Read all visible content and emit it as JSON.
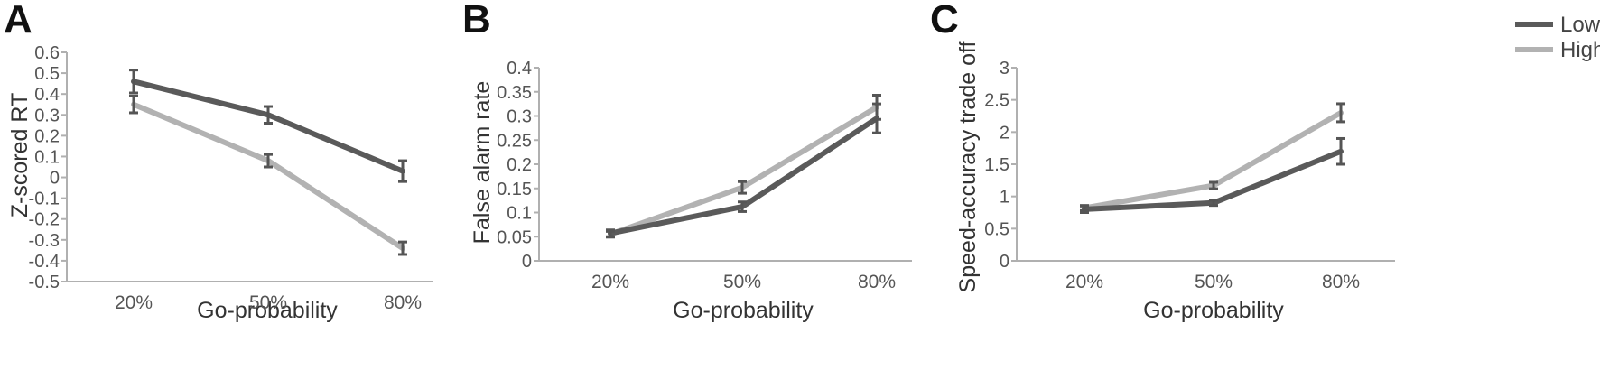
{
  "figure": {
    "legend": [
      {
        "name": "Low",
        "color": "#5a5a5a"
      },
      {
        "name": "High",
        "color": "#b2b2b2"
      }
    ],
    "legend_position": "top-right"
  },
  "chart_data": [
    {
      "panel": "A",
      "type": "line",
      "categories": [
        "20%",
        "50%",
        "80%"
      ],
      "xlabel": "Go-probability",
      "ylabel": "Z-scored RT",
      "ylim": [
        -0.5,
        0.6
      ],
      "yticks": [
        "0.6",
        "0.5",
        "0.4",
        "0.3",
        "0.2",
        "0.1",
        "0",
        "-0.1",
        "-0.2",
        "-0.3",
        "-0.4",
        "-0.5"
      ],
      "ytick_values": [
        0.6,
        0.5,
        0.4,
        0.3,
        0.2,
        0.1,
        0,
        -0.1,
        -0.2,
        -0.3,
        -0.4,
        -0.5
      ],
      "grid": false,
      "series": [
        {
          "name": "Low",
          "color": "#5a5a5a",
          "values": [
            0.46,
            0.3,
            0.03
          ],
          "errors": [
            0.055,
            0.04,
            0.05
          ]
        },
        {
          "name": "High",
          "color": "#b2b2b2",
          "values": [
            0.35,
            0.08,
            -0.34
          ],
          "errors": [
            0.04,
            0.03,
            0.03
          ]
        }
      ]
    },
    {
      "panel": "B",
      "type": "line",
      "categories": [
        "20%",
        "50%",
        "80%"
      ],
      "xlabel": "",
      "ylabel": "False alarm rate",
      "ylim": [
        0,
        0.4
      ],
      "yticks": [
        "0.4",
        "0.35",
        "0.3",
        "0.25",
        "0.2",
        "0.15",
        "0.1",
        "0.05",
        "0"
      ],
      "ytick_values": [
        0.4,
        0.35,
        0.3,
        0.25,
        0.2,
        0.15,
        0.1,
        0.05,
        0
      ],
      "grid": false,
      "series": [
        {
          "name": "Low",
          "color": "#5a5a5a",
          "values": [
            0.057,
            0.112,
            0.295
          ],
          "errors": [
            0.007,
            0.01,
            0.03
          ]
        },
        {
          "name": "High",
          "color": "#b2b2b2",
          "values": [
            0.055,
            0.152,
            0.318
          ],
          "errors": [
            0.006,
            0.012,
            0.025
          ]
        }
      ]
    },
    {
      "panel": "C",
      "type": "line",
      "categories": [
        "20%",
        "50%",
        "80%"
      ],
      "xlabel": "Go-probability",
      "ylabel": "Speed-accuracy trade off",
      "ylim": [
        0,
        3
      ],
      "yticks": [
        "3",
        "2.5",
        "2",
        "1.5",
        "1",
        "0.5",
        "0"
      ],
      "ytick_values": [
        3,
        2.5,
        2,
        1.5,
        1,
        0.5,
        0
      ],
      "grid": false,
      "series": [
        {
          "name": "Low",
          "color": "#5a5a5a",
          "values": [
            0.8,
            0.9,
            1.7
          ],
          "errors": [
            0.05,
            0.04,
            0.2
          ]
        },
        {
          "name": "High",
          "color": "#b2b2b2",
          "values": [
            0.82,
            1.17,
            2.3
          ],
          "errors": [
            0.04,
            0.05,
            0.14
          ]
        }
      ]
    }
  ]
}
